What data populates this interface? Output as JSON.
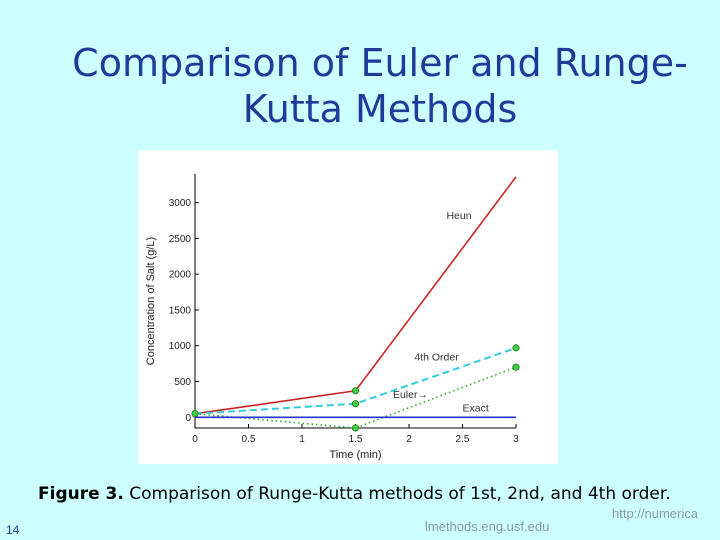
{
  "slide": {
    "title_line1": "Comparison of Euler and Runge-",
    "title_line2": "Kutta Methods",
    "caption_label": "Figure 3.",
    "caption_text": " Comparison of Runge-Kutta methods of 1st, 2nd, and 4th order.",
    "url_line1": "http://numerica",
    "url_line2": "lmethods.eng.usf.edu",
    "slide_number": "14"
  },
  "chart_data": {
    "type": "line",
    "xlabel": "Time (min)",
    "ylabel": "Concentration of Salt (g/L)",
    "xlim": [
      0,
      3
    ],
    "ylim": [
      -150,
      3400
    ],
    "xticks": [
      "0",
      "0.5",
      "1",
      "1.5",
      "2",
      "2.5",
      "3"
    ],
    "xtick_values": [
      0,
      0.5,
      1,
      1.5,
      2,
      2.5,
      3
    ],
    "yticks": [
      "0",
      "500",
      "1000",
      "1500",
      "2000",
      "2500",
      "3000"
    ],
    "ytick_values": [
      0,
      500,
      1000,
      1500,
      2000,
      2500,
      3000
    ],
    "grid": false,
    "series": [
      {
        "name": "Heun",
        "style": "solid",
        "color": "#cc2222",
        "x": [
          0,
          1.5,
          3
        ],
        "y": [
          50,
          370,
          3360
        ],
        "markers": [
          1
        ],
        "label_x": 2.35,
        "label_y": 2770
      },
      {
        "name": "4th Order",
        "style": "dashed",
        "color": "#33ccdd",
        "x": [
          0,
          1.5,
          3
        ],
        "y": [
          50,
          190,
          970
        ],
        "markers": [
          1,
          2
        ],
        "label_x": 2.05,
        "label_y": 790
      },
      {
        "name": "Euler",
        "style": "dotted",
        "color": "#33aa33",
        "x": [
          0,
          1.5,
          3
        ],
        "y": [
          50,
          -150,
          700
        ],
        "markers": [
          0,
          1,
          2
        ],
        "label_x": 1.85,
        "label_y": 270
      },
      {
        "name": "Exact",
        "style": "solid",
        "color": "#2233cc",
        "x": [
          0,
          3
        ],
        "y": [
          0,
          0
        ],
        "markers": [],
        "label_x": 2.5,
        "label_y": 80
      }
    ]
  }
}
